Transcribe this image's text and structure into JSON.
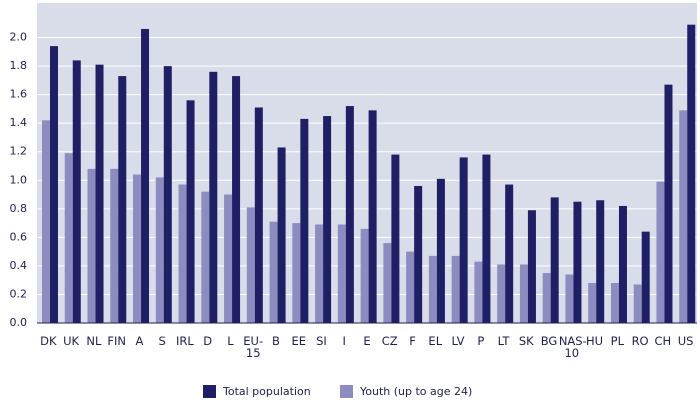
{
  "chart_data": {
    "type": "bar",
    "categories": [
      "DK",
      "UK",
      "NL",
      "FIN",
      "A",
      "S",
      "IRL",
      "D",
      "L",
      "EU-15",
      "B",
      "EE",
      "SI",
      "I",
      "E",
      "CZ",
      "F",
      "EL",
      "LV",
      "P",
      "LT",
      "SK",
      "BG",
      "NAS-10",
      "HU",
      "PL",
      "RO",
      "CH",
      "US"
    ],
    "series": [
      {
        "name": "Youth (up to age 24)",
        "color": "#8c8cc0",
        "values": [
          1.42,
          1.19,
          1.08,
          1.08,
          1.04,
          1.02,
          0.97,
          0.92,
          0.9,
          0.81,
          0.71,
          0.7,
          0.69,
          0.69,
          0.66,
          0.56,
          0.5,
          0.47,
          0.47,
          0.43,
          0.41,
          0.41,
          0.35,
          0.34,
          0.28,
          0.28,
          0.27,
          0.99,
          1.49
        ]
      },
      {
        "name": "Total population",
        "color": "#1f1f66",
        "values": [
          1.94,
          1.84,
          1.81,
          1.73,
          2.06,
          1.8,
          1.56,
          1.76,
          1.73,
          1.51,
          1.23,
          1.43,
          1.45,
          1.52,
          1.49,
          1.18,
          0.96,
          1.01,
          1.16,
          1.18,
          0.97,
          0.79,
          0.88,
          0.85,
          0.86,
          0.82,
          0.64,
          1.67,
          2.09
        ]
      }
    ],
    "legend_order": [
      1,
      0
    ],
    "ylim": [
      0,
      2.2
    ],
    "yticks": [
      {
        "value": 0,
        "label": "0.0"
      },
      0.2,
      0.4,
      0.6,
      0.8,
      {
        "value": 1,
        "label": "1.0"
      },
      1.2,
      1.4,
      1.6,
      1.8,
      {
        "value": 2,
        "label": "2.0"
      }
    ],
    "grid": true
  }
}
